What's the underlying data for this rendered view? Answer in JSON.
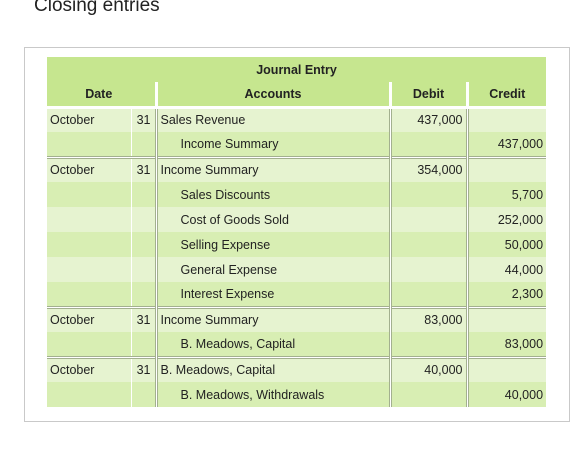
{
  "page": {
    "heading": "Closing entries"
  },
  "journal": {
    "title": "Journal Entry",
    "headers": {
      "date": "Date",
      "accounts": "Accounts",
      "debit": "Debit",
      "credit": "Credit"
    },
    "rows": [
      {
        "month": "October",
        "day": "31",
        "account": "Sales Revenue",
        "debit": "437,000",
        "credit": ""
      },
      {
        "month": "",
        "day": "",
        "account": "Income Summary",
        "debit": "",
        "credit": "437,000"
      },
      {
        "month": "October",
        "day": "31",
        "account": "Income Summary",
        "debit": "354,000",
        "credit": ""
      },
      {
        "month": "",
        "day": "",
        "account": "Sales Discounts",
        "debit": "",
        "credit": "5,700"
      },
      {
        "month": "",
        "day": "",
        "account": "Cost of Goods Sold",
        "debit": "",
        "credit": "252,000"
      },
      {
        "month": "",
        "day": "",
        "account": "Selling Expense",
        "debit": "",
        "credit": "50,000"
      },
      {
        "month": "",
        "day": "",
        "account": "General Expense",
        "debit": "",
        "credit": "44,000"
      },
      {
        "month": "",
        "day": "",
        "account": "Interest Expense",
        "debit": "",
        "credit": "2,300"
      },
      {
        "month": "October",
        "day": "31",
        "account": "Income Summary",
        "debit": "83,000",
        "credit": ""
      },
      {
        "month": "",
        "day": "",
        "account": "B. Meadows, Capital",
        "debit": "",
        "credit": "83,000"
      },
      {
        "month": "October",
        "day": "31",
        "account": "B. Meadows, Capital",
        "debit": "40,000",
        "credit": ""
      },
      {
        "month": "",
        "day": "",
        "account": "B. Meadows, Withdrawals",
        "debit": "",
        "credit": "40,000"
      }
    ]
  },
  "colors": {
    "header_green": "#c6e68f",
    "row_dark": "#d8eeb3",
    "row_light": "#e6f3d0"
  }
}
